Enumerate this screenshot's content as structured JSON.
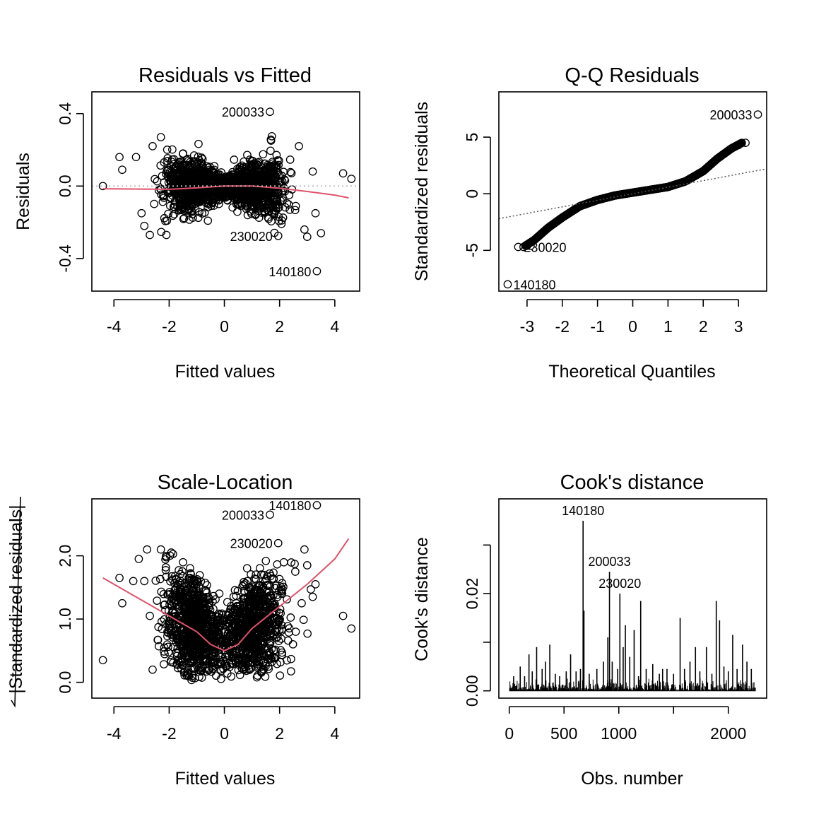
{
  "chart_data": [
    {
      "type": "scatter",
      "title": "Residuals vs Fitted",
      "xlabel": "Fitted values",
      "ylabel": "Residuals",
      "xlim": [
        -4.8,
        4.9
      ],
      "ylim": [
        -0.58,
        0.52
      ],
      "xticks": [
        -4,
        -2,
        0,
        2,
        4
      ],
      "yticks": [
        -0.4,
        0.0,
        0.4
      ],
      "xtick_labels": [
        "-4",
        "-2",
        "0",
        "2",
        "4"
      ],
      "ytick_labels": [
        "-0.4",
        "0.0",
        "0.4"
      ],
      "reference_line": {
        "y": 0,
        "style": "dotted",
        "color": "#bebebe"
      },
      "smooth": {
        "color": "#df536b",
        "points": [
          [
            -4.4,
            -0.015
          ],
          [
            -3,
            -0.017
          ],
          [
            -2,
            -0.018
          ],
          [
            -1,
            -0.01
          ],
          [
            0,
            0.0
          ],
          [
            1,
            0.0
          ],
          [
            2,
            -0.012
          ],
          [
            3,
            -0.03
          ],
          [
            4,
            -0.05
          ],
          [
            4.5,
            -0.065
          ]
        ]
      },
      "labeled_points": [
        {
          "label": "200033",
          "x": 1.65,
          "y": 0.41
        },
        {
          "label": "230020",
          "x": 1.95,
          "y": -0.275
        },
        {
          "label": "140180",
          "x": 3.35,
          "y": -0.47
        }
      ],
      "outer_points": [
        [
          -4.4,
          0.0
        ],
        [
          -3.8,
          0.16
        ],
        [
          -3.7,
          0.09
        ],
        [
          -3.2,
          0.16
        ],
        [
          -3.0,
          -0.15
        ],
        [
          -2.9,
          -0.22
        ],
        [
          -2.7,
          -0.27
        ],
        [
          -2.6,
          0.22
        ],
        [
          -2.3,
          0.27
        ],
        [
          -2.1,
          -0.27
        ],
        [
          4.3,
          0.07
        ],
        [
          4.6,
          0.04
        ],
        [
          2.7,
          0.22
        ],
        [
          2.9,
          -0.24
        ],
        [
          3.0,
          -0.28
        ],
        [
          3.2,
          0.08
        ],
        [
          3.5,
          -0.26
        ],
        [
          3.3,
          -0.15
        ]
      ]
    },
    {
      "type": "scatter",
      "title": "Q-Q Residuals",
      "xlabel": "Theoretical Quantiles",
      "ylabel": "Standardized residuals",
      "xlim": [
        -3.8,
        3.8
      ],
      "ylim": [
        -8.6,
        9.0
      ],
      "xticks": [
        -3,
        -2,
        -1,
        0,
        1,
        2,
        3
      ],
      "yticks": [
        -5,
        0,
        5
      ],
      "xtick_labels": [
        "-3",
        "-2",
        "-1",
        "0",
        "1",
        "2",
        "3"
      ],
      "ytick_labels": [
        "-5",
        "0",
        "5"
      ],
      "reference_line": {
        "from": [
          -3.8,
          -2.2
        ],
        "to": [
          3.8,
          2.2
        ],
        "style": "dotted",
        "color": "#555555"
      },
      "curve": [
        [
          -3.05,
          -4.6
        ],
        [
          -2.8,
          -4.1
        ],
        [
          -2.4,
          -3.0
        ],
        [
          -2,
          -2.1
        ],
        [
          -1.5,
          -1.1
        ],
        [
          -1,
          -0.55
        ],
        [
          -0.5,
          -0.15
        ],
        [
          0,
          0.1
        ],
        [
          0.5,
          0.35
        ],
        [
          1,
          0.6
        ],
        [
          1.5,
          1.1
        ],
        [
          2,
          2.0
        ],
        [
          2.4,
          3.1
        ],
        [
          2.8,
          4.0
        ],
        [
          3.1,
          4.5
        ]
      ],
      "labeled_points": [
        {
          "label": "200033",
          "x": 3.55,
          "y": 7.0
        },
        {
          "label": "230020",
          "x": -3.25,
          "y": -4.7
        },
        {
          "label": "140180",
          "x": -3.55,
          "y": -8.0
        }
      ]
    },
    {
      "type": "scatter",
      "title": "Scale-Location",
      "xlabel": "Fitted values",
      "ylabel": "|Standardized residuals|",
      "xlim": [
        -4.8,
        4.9
      ],
      "ylim": [
        -0.25,
        2.9
      ],
      "xticks": [
        -4,
        -2,
        0,
        2,
        4
      ],
      "yticks": [
        0.0,
        1.0,
        2.0
      ],
      "xtick_labels": [
        "-4",
        "-2",
        "0",
        "2",
        "4"
      ],
      "ytick_labels": [
        "0.0",
        "1.0",
        "2.0"
      ],
      "smooth": {
        "color": "#df536b",
        "points": [
          [
            -4.4,
            1.65
          ],
          [
            -3,
            1.3
          ],
          [
            -2,
            1.05
          ],
          [
            -1,
            0.8
          ],
          [
            -0.5,
            0.6
          ],
          [
            0,
            0.5
          ],
          [
            0.5,
            0.6
          ],
          [
            1,
            0.85
          ],
          [
            2,
            1.2
          ],
          [
            3,
            1.55
          ],
          [
            4,
            1.95
          ],
          [
            4.5,
            2.27
          ]
        ]
      },
      "labeled_points": [
        {
          "label": "140180",
          "x": 3.35,
          "y": 2.8
        },
        {
          "label": "200033",
          "x": 1.65,
          "y": 2.65
        },
        {
          "label": "230020",
          "x": 1.95,
          "y": 2.2
        }
      ],
      "outer_points": [
        [
          -4.4,
          0.35
        ],
        [
          -3.8,
          1.65
        ],
        [
          -3.7,
          1.25
        ],
        [
          -3.3,
          1.6
        ],
        [
          -3.1,
          1.95
        ],
        [
          -2.9,
          1.6
        ],
        [
          -2.7,
          1.05
        ],
        [
          -2.6,
          0.2
        ],
        [
          -2.8,
          2.1
        ],
        [
          -2.3,
          2.1
        ],
        [
          4.3,
          1.05
        ],
        [
          4.6,
          0.85
        ],
        [
          2.9,
          2.1
        ],
        [
          3.0,
          1.85
        ],
        [
          3.2,
          1.35
        ],
        [
          3.3,
          1.55
        ],
        [
          2.8,
          1.25
        ]
      ]
    },
    {
      "type": "bar",
      "title": "Cook's distance",
      "xlabel": "Obs. number",
      "ylabel": "Cook's distance",
      "xlim": [
        -95,
        2350
      ],
      "ylim": [
        -0.0015,
        0.0395
      ],
      "xticks": [
        0,
        500,
        1000,
        1500,
        2000
      ],
      "yticks": [
        0.0,
        0.01,
        0.02,
        0.03
      ],
      "xtick_labels": [
        "0",
        "500",
        "1000",
        "",
        "2000"
      ],
      "ytick_labels": [
        "0.00",
        "",
        "0.02",
        ""
      ],
      "n_obs": 2250,
      "spikes": [
        [
          40,
          0.003
        ],
        [
          100,
          0.005
        ],
        [
          140,
          0.003
        ],
        [
          180,
          0.0075
        ],
        [
          210,
          0.004
        ],
        [
          250,
          0.009
        ],
        [
          300,
          0.0045
        ],
        [
          330,
          0.006
        ],
        [
          370,
          0.0095
        ],
        [
          420,
          0.0035
        ],
        [
          460,
          0.003
        ],
        [
          520,
          0.004
        ],
        [
          560,
          0.0075
        ],
        [
          610,
          0.004
        ],
        [
          650,
          0.0045
        ],
        [
          674,
          0.035
        ],
        [
          682,
          0.0165
        ],
        [
          730,
          0.0035
        ],
        [
          800,
          0.0045
        ],
        [
          860,
          0.006
        ],
        [
          900,
          0.011
        ],
        [
          915,
          0.0245
        ],
        [
          940,
          0.006
        ],
        [
          990,
          0.0045
        ],
        [
          1010,
          0.02
        ],
        [
          1040,
          0.009
        ],
        [
          1060,
          0.0135
        ],
        [
          1100,
          0.007
        ],
        [
          1140,
          0.0125
        ],
        [
          1180,
          0.003
        ],
        [
          1200,
          0.0185
        ],
        [
          1250,
          0.0045
        ],
        [
          1310,
          0.0055
        ],
        [
          1370,
          0.0035
        ],
        [
          1400,
          0.0045
        ],
        [
          1440,
          0.0045
        ],
        [
          1500,
          0.0035
        ],
        [
          1560,
          0.015
        ],
        [
          1600,
          0.0045
        ],
        [
          1650,
          0.006
        ],
        [
          1700,
          0.009
        ],
        [
          1740,
          0.004
        ],
        [
          1800,
          0.009
        ],
        [
          1850,
          0.0035
        ],
        [
          1890,
          0.0185
        ],
        [
          1920,
          0.0145
        ],
        [
          1960,
          0.005
        ],
        [
          2000,
          0.004
        ],
        [
          2040,
          0.0115
        ],
        [
          2080,
          0.0045
        ],
        [
          2130,
          0.0095
        ],
        [
          2170,
          0.006
        ],
        [
          2210,
          0.0045
        ]
      ],
      "labeled_points": [
        {
          "label": "140180",
          "x": 674,
          "y": 0.035
        },
        {
          "label": "200033",
          "x": 915,
          "y": 0.0245
        },
        {
          "label": "230020",
          "x": 1010,
          "y": 0.02
        }
      ]
    }
  ]
}
